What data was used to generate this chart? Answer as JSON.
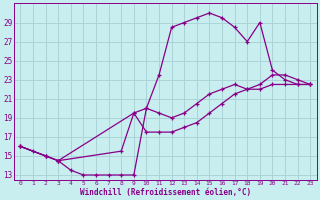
{
  "bg_color": "#c8eef0",
  "line_color": "#880088",
  "grid_color": "#aad4d8",
  "xlabel": "Windchill (Refroidissement éolien,°C)",
  "ylabel_ticks": [
    13,
    15,
    17,
    19,
    21,
    23,
    25,
    27,
    29
  ],
  "xlim": [
    -0.5,
    23.5
  ],
  "ylim": [
    12.5,
    31.0
  ],
  "upper_x": [
    0,
    1,
    2,
    3,
    4,
    5,
    6,
    7,
    8,
    9,
    10,
    11,
    12,
    13,
    14,
    15,
    16,
    17,
    18,
    19,
    20,
    21,
    22,
    23
  ],
  "upper_y": [
    16.0,
    15.5,
    15.0,
    14.5,
    13.5,
    13.0,
    13.0,
    13.0,
    13.0,
    13.0,
    20.0,
    23.5,
    28.5,
    29.0,
    29.5,
    30.0,
    29.5,
    28.5,
    27.0,
    29.0,
    24.0,
    23.0,
    22.5,
    22.5
  ],
  "mid_x": [
    0,
    2,
    3,
    9,
    10,
    11,
    12,
    13,
    14,
    15,
    16,
    17,
    18,
    19,
    20,
    21,
    22,
    23
  ],
  "mid_y": [
    16.0,
    15.0,
    14.5,
    19.5,
    20.0,
    19.5,
    19.0,
    19.5,
    20.5,
    21.5,
    22.0,
    22.5,
    22.0,
    22.5,
    23.5,
    23.5,
    23.0,
    22.5
  ],
  "low_x": [
    0,
    2,
    3,
    8,
    9,
    10,
    11,
    12,
    13,
    14,
    15,
    16,
    17,
    18,
    19,
    20,
    21,
    22,
    23
  ],
  "low_y": [
    16.0,
    15.0,
    14.5,
    15.5,
    19.5,
    17.5,
    17.5,
    17.5,
    18.0,
    18.5,
    19.5,
    20.5,
    21.5,
    22.0,
    22.0,
    22.5,
    22.5,
    22.5,
    22.5
  ],
  "xtick_labels": [
    "0",
    "1",
    "2",
    "3",
    "4",
    "5",
    "6",
    "7",
    "8",
    "9",
    "10",
    "11",
    "12",
    "13",
    "14",
    "15",
    "16",
    "17",
    "18",
    "19",
    "20",
    "21",
    "22",
    "23"
  ]
}
